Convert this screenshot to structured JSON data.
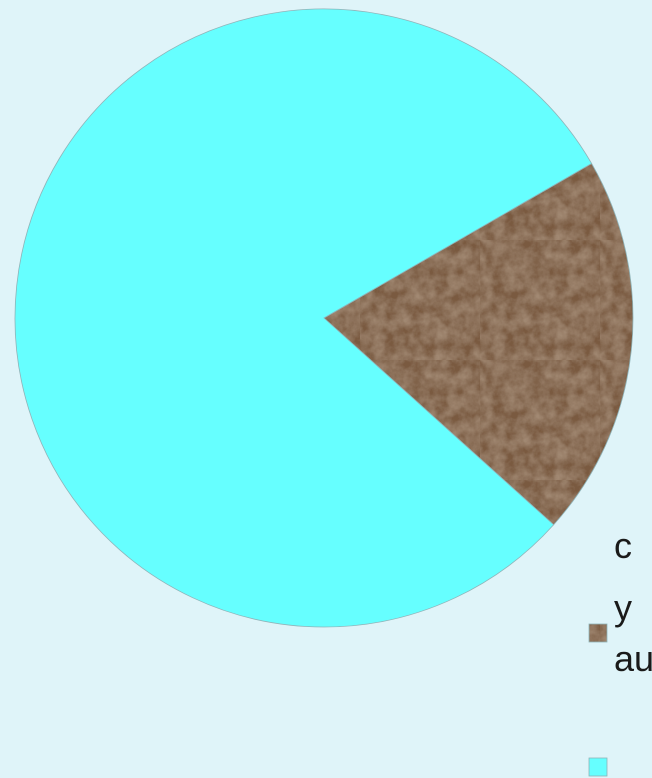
{
  "chart_data": {
    "type": "pie",
    "title": "",
    "slices": [
      {
        "label": "c\ny\nau",
        "value": 20,
        "fill": "texture-brown"
      },
      {
        "label": "",
        "value": 80,
        "color": "#66ffff"
      }
    ],
    "start_angle_deg": 60,
    "direction": "clockwise",
    "legend_placement": "right",
    "colors": {
      "background": "#dff4f9",
      "cyan": "#66ffff",
      "brown": "#5b3f2a",
      "edge": "#8fb3b8"
    }
  }
}
